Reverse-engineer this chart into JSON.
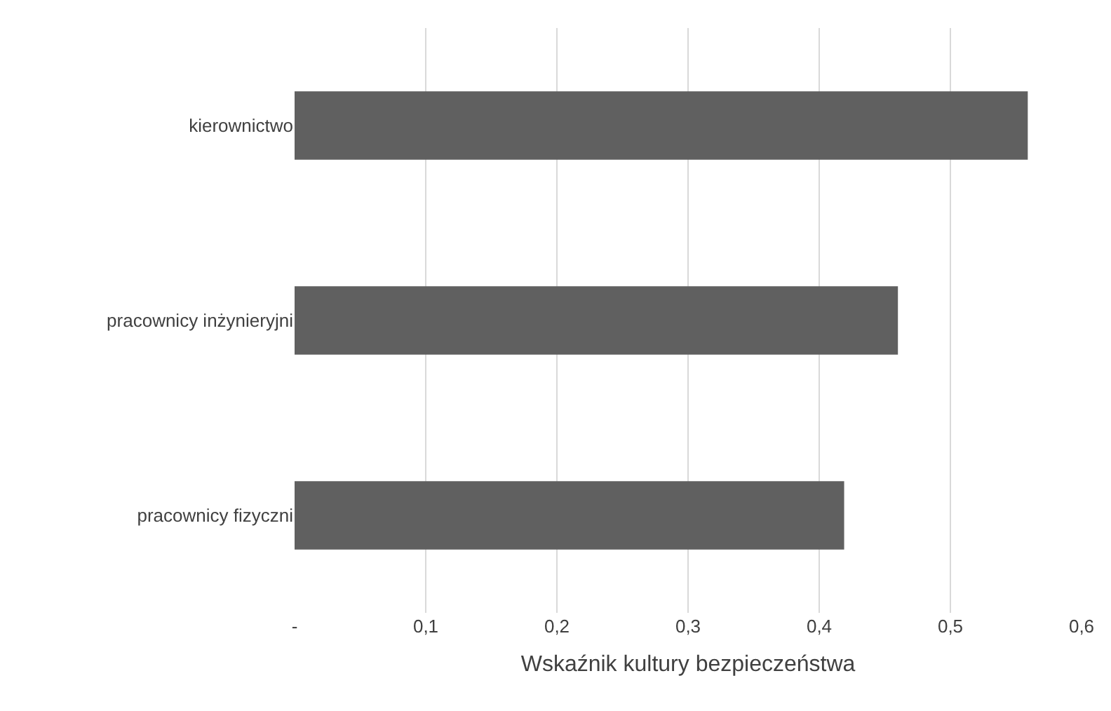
{
  "chart_data": {
    "type": "bar",
    "orientation": "horizontal",
    "xlabel": "Wskaźnik kultury bezpieczeństwa",
    "categories": [
      "kierownictwo",
      "pracownicy inżynieryjni",
      "pracownicy fizyczni"
    ],
    "values": [
      0.559,
      0.46,
      0.419
    ],
    "color": "#606060",
    "xlim": [
      0,
      0.6
    ],
    "xticks": [
      {
        "value": 0,
        "label": "-"
      },
      {
        "value": 0.1,
        "label": "0,1"
      },
      {
        "value": 0.2,
        "label": "0,2"
      },
      {
        "value": 0.3,
        "label": "0,3"
      },
      {
        "value": 0.4,
        "label": "0,4"
      },
      {
        "value": 0.5,
        "label": "0,5"
      },
      {
        "value": 0.6,
        "label": "0,6"
      }
    ],
    "grid": "x",
    "legend": false
  }
}
